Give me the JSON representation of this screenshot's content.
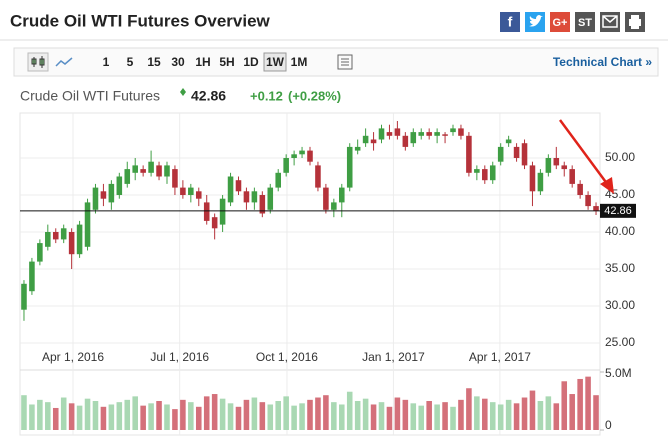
{
  "header": {
    "title": "Crude Oil WTI Futures Overview",
    "share": {
      "facebook": "f",
      "google": "G+",
      "stocktwits": "ST"
    }
  },
  "toolbar": {
    "periods": [
      "1",
      "5",
      "15",
      "30",
      "1H",
      "5H",
      "1D",
      "1W",
      "1M"
    ],
    "selected": "1W",
    "link": "Technical Chart »"
  },
  "quote": {
    "name": "Crude Oil WTI Futures",
    "price": "42.86",
    "change": "+0.12",
    "change_pct": "(+0.28%)"
  },
  "chart_data": {
    "type": "candlestick",
    "ohlc": [
      [
        29.5,
        33.5,
        28,
        33
      ],
      [
        32,
        36.5,
        31.5,
        36
      ],
      [
        36,
        39,
        35.5,
        38.5
      ],
      [
        38,
        41,
        37.5,
        40
      ],
      [
        40,
        40.5,
        38.5,
        39
      ],
      [
        39,
        41,
        38.5,
        40.5
      ],
      [
        40,
        40.5,
        35,
        37
      ],
      [
        37,
        41.5,
        36.5,
        41
      ],
      [
        38,
        44.5,
        37.5,
        44
      ],
      [
        43,
        46.5,
        42.5,
        46
      ],
      [
        45.5,
        46.5,
        43.5,
        44.5
      ],
      [
        44,
        47,
        43,
        46.5
      ],
      [
        45,
        48,
        44.5,
        47.5
      ],
      [
        46.5,
        49.5,
        46,
        48.5
      ],
      [
        48,
        50,
        47,
        49
      ],
      [
        48.5,
        49,
        47.5,
        48
      ],
      [
        48,
        51,
        47.5,
        49.5
      ],
      [
        49,
        49.5,
        47,
        47.5
      ],
      [
        47.5,
        49.5,
        46.5,
        49
      ],
      [
        48.5,
        49,
        45,
        46
      ],
      [
        46,
        47,
        44.5,
        45
      ],
      [
        45,
        46.5,
        44,
        46
      ],
      [
        45.5,
        46,
        43.5,
        44.5
      ],
      [
        44,
        45,
        41,
        41.5
      ],
      [
        42,
        42.5,
        39,
        40.5
      ],
      [
        41,
        45,
        40,
        44.5
      ],
      [
        44,
        48,
        43.5,
        47.5
      ],
      [
        47,
        47.5,
        45,
        45.5
      ],
      [
        45.5,
        46,
        43,
        44
      ],
      [
        44,
        46,
        43,
        45.5
      ],
      [
        45,
        45.5,
        42,
        42.5
      ],
      [
        43,
        46.5,
        42.5,
        46
      ],
      [
        46,
        48.5,
        45.5,
        48
      ],
      [
        48,
        50.5,
        47.5,
        50
      ],
      [
        50,
        51,
        49,
        50.5
      ],
      [
        50.5,
        51.5,
        50,
        51
      ],
      [
        51,
        51.5,
        49,
        49.5
      ],
      [
        49,
        49.5,
        45.5,
        46
      ],
      [
        46,
        46.5,
        42.5,
        43
      ],
      [
        43,
        44.5,
        42,
        44
      ],
      [
        44,
        46.5,
        42,
        46
      ],
      [
        46,
        52,
        45.5,
        51.5
      ],
      [
        51,
        52.5,
        50.5,
        51.5
      ],
      [
        52,
        54,
        51.5,
        53
      ],
      [
        52.5,
        53.5,
        51,
        52
      ],
      [
        52.5,
        54.5,
        52,
        54
      ],
      [
        53.5,
        54.5,
        52.5,
        53
      ],
      [
        54,
        55,
        52.5,
        53
      ],
      [
        53,
        53.5,
        51,
        51.5
      ],
      [
        52,
        54,
        51.5,
        53.5
      ],
      [
        53,
        54,
        52.5,
        53.5
      ],
      [
        53.5,
        54,
        52.5,
        53
      ],
      [
        53,
        54,
        52,
        53.5
      ],
      [
        53.2,
        53.5,
        52,
        53
      ],
      [
        53.5,
        54.5,
        53,
        54
      ],
      [
        54,
        54.5,
        52.5,
        53
      ],
      [
        53,
        53.5,
        47.5,
        48
      ],
      [
        48,
        49,
        47,
        48.5
      ],
      [
        48.5,
        49,
        46.5,
        47
      ],
      [
        47,
        49.5,
        46.5,
        49
      ],
      [
        49.5,
        52,
        49,
        51.5
      ],
      [
        52,
        53,
        51.5,
        52.5
      ],
      [
        51.5,
        52,
        49.5,
        50
      ],
      [
        52,
        52.5,
        48.5,
        49
      ],
      [
        49,
        49.5,
        43.5,
        45.5
      ],
      [
        45.5,
        48.5,
        45,
        48
      ],
      [
        48,
        50.5,
        47.5,
        50
      ],
      [
        50,
        51.5,
        48.5,
        49
      ],
      [
        49,
        49.5,
        47.5,
        48.5
      ],
      [
        48.5,
        49,
        46,
        46.5
      ],
      [
        46.5,
        47,
        44.5,
        45
      ],
      [
        45,
        45.5,
        43,
        43.5
      ],
      [
        43.5,
        44,
        42.3,
        42.86
      ]
    ],
    "volume": [
      3.0,
      2.2,
      2.6,
      2.4,
      1.9,
      2.8,
      2.3,
      2.1,
      2.7,
      2.5,
      2.0,
      2.2,
      2.4,
      2.6,
      2.9,
      2.1,
      2.3,
      2.5,
      2.2,
      1.8,
      2.6,
      2.4,
      2.0,
      2.9,
      3.1,
      2.7,
      2.3,
      2.0,
      2.6,
      2.8,
      2.4,
      2.2,
      2.5,
      2.9,
      2.1,
      2.3,
      2.6,
      2.8,
      3.0,
      2.4,
      2.2,
      3.3,
      2.5,
      2.7,
      2.2,
      2.4,
      2.0,
      2.8,
      2.6,
      2.3,
      2.1,
      2.5,
      2.2,
      2.4,
      2.0,
      2.6,
      3.6,
      2.9,
      2.7,
      2.4,
      2.2,
      2.6,
      2.3,
      2.8,
      3.4,
      2.5,
      2.9,
      2.3,
      4.2,
      3.1,
      4.4,
      4.6,
      3.0
    ],
    "last": 42.86,
    "xticks": [
      {
        "value": 6.17,
        "label": "Apr 1, 2016"
      },
      {
        "value": 19.6,
        "label": "Jul 1, 2016"
      },
      {
        "value": 33.1,
        "label": "Oct 1, 2016"
      },
      {
        "value": 46.5,
        "label": "Jan 1, 2017"
      },
      {
        "value": 59.9,
        "label": "Apr 1, 2017"
      }
    ],
    "ylim": [
      22,
      56
    ],
    "yticks": [
      {
        "value": 25,
        "label": "25.00"
      },
      {
        "value": 30,
        "label": "30.00"
      },
      {
        "value": 35,
        "label": "35.00"
      },
      {
        "value": 40,
        "label": "40.00"
      },
      {
        "value": 45,
        "label": "45.00"
      },
      {
        "value": 50,
        "label": "50.00"
      }
    ],
    "y2lim": [
      0,
      5
    ],
    "y2ticks": [
      {
        "value": 5,
        "label": "5.0M"
      },
      0
    ],
    "grid": true,
    "up_color": "#3f9e44",
    "down_color": "#b5323a",
    "volume_up_color": "#a9d8b3",
    "volume_down_color": "#d4707a"
  }
}
